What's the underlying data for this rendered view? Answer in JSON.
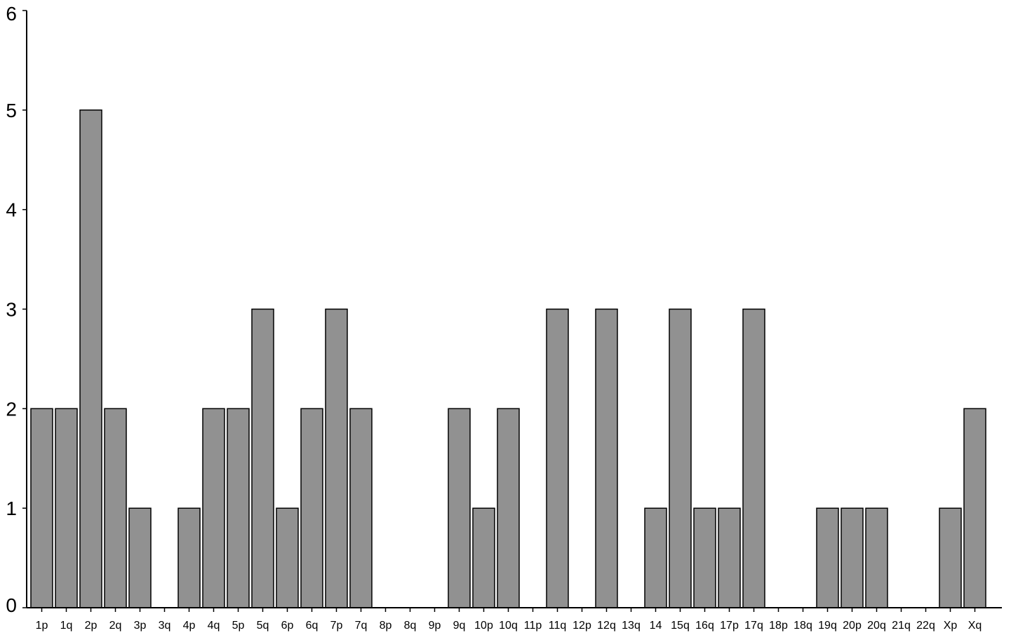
{
  "chart_data": {
    "type": "bar",
    "title": "",
    "xlabel": "",
    "ylabel": "",
    "ylim": [
      0,
      6
    ],
    "yticks": [
      "0",
      "1",
      "2",
      "3",
      "4",
      "5",
      "6"
    ],
    "grid": false,
    "legend": "none",
    "bar_color": "#919191",
    "bar_edge_color": "#000000",
    "categories": [
      "1p",
      "1q",
      "2p",
      "2q",
      "3p",
      "3q",
      "4p",
      "4q",
      "5p",
      "5q",
      "6p",
      "6q",
      "7p",
      "7q",
      "8p",
      "8q",
      "9p",
      "9q",
      "10p",
      "10q",
      "11p",
      "11q",
      "12p",
      "12q",
      "13q",
      "14",
      "15q",
      "16q",
      "17p",
      "17q",
      "18p",
      "18q",
      "19q",
      "20p",
      "20q",
      "21q",
      "22q",
      "Xp",
      "Xq"
    ],
    "values": [
      2,
      2,
      5,
      2,
      1,
      0,
      1,
      2,
      2,
      3,
      1,
      2,
      3,
      2,
      0,
      0,
      0,
      2,
      1,
      2,
      0,
      3,
      0,
      3,
      0,
      1,
      3,
      1,
      1,
      3,
      0,
      0,
      1,
      1,
      1,
      0,
      0,
      1,
      2
    ]
  }
}
